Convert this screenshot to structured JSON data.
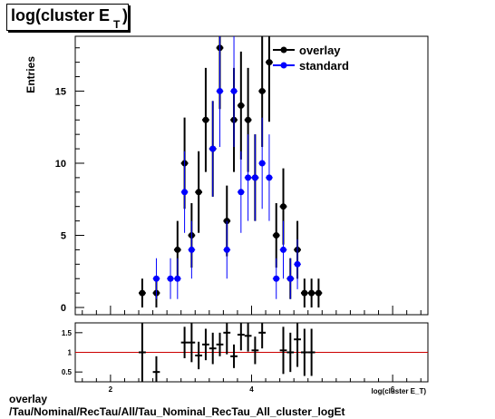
{
  "title": {
    "main": "log(cluster E",
    "sub": "T",
    "close": ")"
  },
  "footer": {
    "line1": "overlay",
    "line2": "/Tau/Nominal/RecTau/All/Tau_Nominal_RecTau_All_cluster_logEt"
  },
  "colors": {
    "overlay": "#000000",
    "standard": "#0000ff",
    "ratio_line": "#cc0000"
  },
  "chart_data": [
    {
      "type": "scatter",
      "ylabel": "Entries",
      "xlim": [
        1.5,
        6.5
      ],
      "ylim": [
        -0.5,
        18.8
      ],
      "yticks": [
        0,
        5,
        10,
        15
      ],
      "xticks": [
        2,
        4,
        6
      ],
      "legend": {
        "placement": "top-right",
        "entries": [
          "overlay",
          "standard"
        ]
      },
      "series": [
        {
          "name": "overlay",
          "x": [
            2.45,
            2.65,
            2.95,
            3.05,
            3.15,
            3.25,
            3.35,
            3.45,
            3.55,
            3.65,
            3.75,
            3.85,
            3.95,
            4.05,
            4.15,
            4.25,
            4.35,
            4.45,
            4.55,
            4.65,
            4.75,
            4.85,
            4.95
          ],
          "y": [
            1,
            1,
            4,
            10,
            5,
            8,
            13,
            11,
            18,
            6,
            13,
            14,
            13,
            9,
            15,
            17,
            5,
            7,
            2,
            4,
            1,
            1,
            1
          ]
        },
        {
          "name": "standard",
          "x": [
            2.65,
            2.85,
            2.95,
            3.05,
            3.15,
            3.45,
            3.55,
            3.65,
            3.75,
            3.85,
            3.95,
            4.05,
            4.15,
            4.25,
            4.35,
            4.45,
            4.55,
            4.65
          ],
          "y": [
            2,
            2,
            2,
            8,
            4,
            11,
            15,
            4,
            15,
            8,
            9,
            9,
            10,
            9,
            2,
            4,
            2,
            3
          ]
        }
      ]
    },
    {
      "type": "scatter",
      "xlabel": "log(cluster E_T)",
      "xlim": [
        1.5,
        6.5
      ],
      "ylim": [
        0.25,
        1.75
      ],
      "yticks": [
        0.5,
        1,
        1.5
      ],
      "yticklabels": [
        "0.5",
        "1",
        "1.5"
      ],
      "xticks": [
        2,
        4,
        6
      ],
      "reference_line": 1,
      "series": [
        {
          "name": "ratio",
          "x": [
            2.45,
            2.65,
            3.05,
            3.15,
            3.25,
            3.35,
            3.45,
            3.55,
            3.65,
            3.75,
            3.85,
            3.95,
            4.05,
            4.15,
            4.45,
            4.55,
            4.65,
            4.75,
            4.85
          ],
          "y": [
            1.0,
            0.5,
            1.25,
            1.25,
            0.92,
            1.2,
            1.1,
            1.2,
            1.5,
            0.9,
            1.45,
            1.42,
            1.05,
            1.5,
            1.05,
            1.0,
            1.33,
            1.0,
            1.0
          ],
          "yerr": [
            0.8,
            0.4,
            0.4,
            0.5,
            0.35,
            0.4,
            0.4,
            0.3,
            0.55,
            0.3,
            0.4,
            0.4,
            0.35,
            0.4,
            0.6,
            0.5,
            0.7,
            0.6,
            0.6
          ]
        }
      ]
    }
  ]
}
